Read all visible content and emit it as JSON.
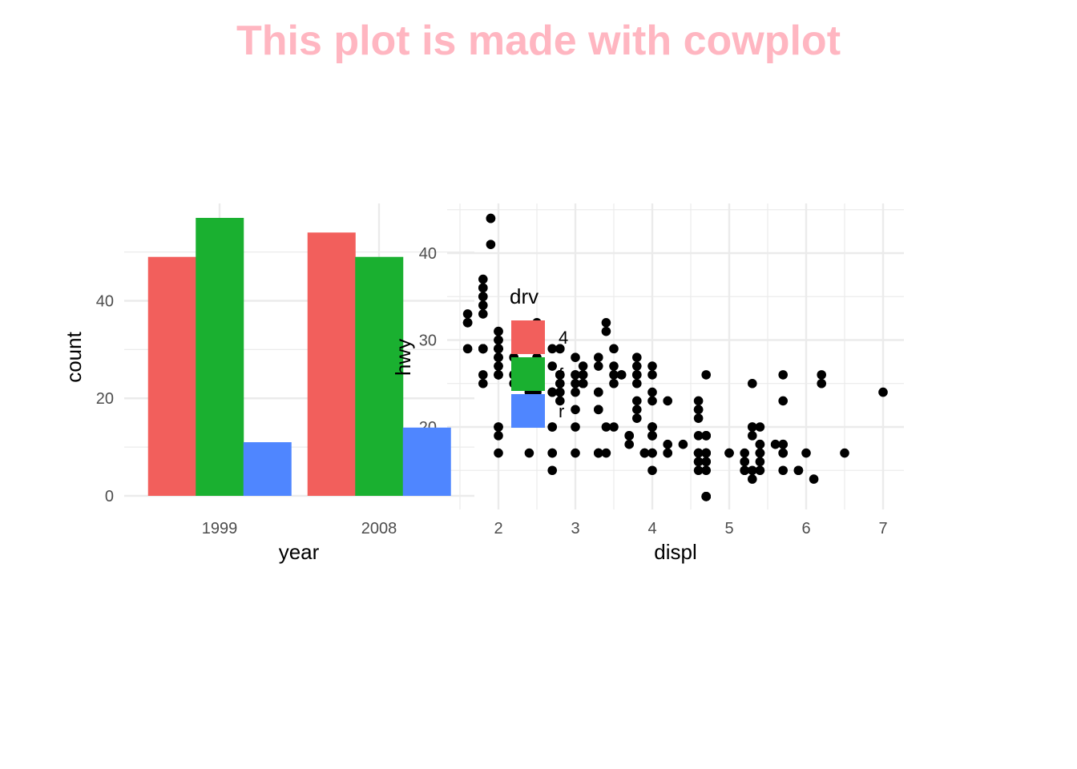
{
  "title": "This plot is made with cowplot",
  "colors": {
    "title": "#FFB6C1",
    "grid": "#ebebeb",
    "fill_4": "#F25F5C",
    "fill_f": "#1AB030",
    "fill_r": "#4F86FF",
    "point": "#000000"
  },
  "chart_data": [
    {
      "type": "bar",
      "xlabel": "year",
      "ylabel": "count",
      "categories": [
        "1999",
        "2008"
      ],
      "yticks": [
        "0",
        "20",
        "40"
      ],
      "ytick_values": [
        0,
        20,
        40
      ],
      "ylim": [
        0,
        57
      ],
      "grid": true,
      "series": [
        {
          "name": "4",
          "color": "#F25F5C",
          "values": [
            49,
            54
          ]
        },
        {
          "name": "f",
          "color": "#1AB030",
          "values": [
            57,
            49
          ]
        },
        {
          "name": "r",
          "color": "#4F86FF",
          "values": [
            11,
            14
          ]
        }
      ]
    },
    {
      "type": "scatter",
      "xlabel": "displ",
      "ylabel": "hwy",
      "xticks": [
        "2",
        "3",
        "4",
        "5",
        "6",
        "7"
      ],
      "xtick_values": [
        2,
        3,
        4,
        5,
        6,
        7
      ],
      "yticks": [
        "20",
        "30",
        "40"
      ],
      "ytick_values": [
        20,
        30,
        40
      ],
      "xlim": [
        1.6,
        7.3
      ],
      "ylim": [
        11,
        45
      ],
      "grid": true,
      "points": [
        [
          1.8,
          29
        ],
        [
          1.8,
          29
        ],
        [
          2.0,
          31
        ],
        [
          2.0,
          30
        ],
        [
          2.8,
          26
        ],
        [
          2.8,
          26
        ],
        [
          3.1,
          27
        ],
        [
          1.8,
          26
        ],
        [
          1.8,
          25
        ],
        [
          2.0,
          28
        ],
        [
          2.0,
          27
        ],
        [
          2.8,
          25
        ],
        [
          2.8,
          25
        ],
        [
          3.1,
          25
        ],
        [
          3.1,
          25
        ],
        [
          2.8,
          24
        ],
        [
          3.1,
          25
        ],
        [
          4.2,
          23
        ],
        [
          5.3,
          20
        ],
        [
          5.3,
          15
        ],
        [
          5.3,
          20
        ],
        [
          5.7,
          17
        ],
        [
          6.0,
          17
        ],
        [
          5.7,
          26
        ],
        [
          5.7,
          23
        ],
        [
          6.2,
          26
        ],
        [
          6.2,
          25
        ],
        [
          7.0,
          24
        ],
        [
          5.3,
          19
        ],
        [
          5.3,
          14
        ],
        [
          5.7,
          15
        ],
        [
          6.5,
          17
        ],
        [
          2.4,
          27
        ],
        [
          2.4,
          30
        ],
        [
          3.1,
          26
        ],
        [
          3.5,
          29
        ],
        [
          3.6,
          26
        ],
        [
          2.4,
          24
        ],
        [
          3.0,
          24
        ],
        [
          3.3,
          22
        ],
        [
          3.3,
          22
        ],
        [
          3.3,
          24
        ],
        [
          3.3,
          24
        ],
        [
          3.3,
          17
        ],
        [
          3.8,
          22
        ],
        [
          3.8,
          21
        ],
        [
          3.8,
          23
        ],
        [
          4.0,
          23
        ],
        [
          3.7,
          19
        ],
        [
          3.7,
          18
        ],
        [
          3.9,
          17
        ],
        [
          3.9,
          17
        ],
        [
          4.7,
          19
        ],
        [
          4.7,
          19
        ],
        [
          4.7,
          12
        ],
        [
          5.2,
          17
        ],
        [
          5.2,
          15
        ],
        [
          3.9,
          17
        ],
        [
          4.7,
          17
        ],
        [
          4.7,
          12
        ],
        [
          4.7,
          17
        ],
        [
          5.2,
          16
        ],
        [
          5.7,
          18
        ],
        [
          5.9,
          15
        ],
        [
          4.7,
          16
        ],
        [
          4.7,
          12
        ],
        [
          4.7,
          17
        ],
        [
          4.7,
          17
        ],
        [
          4.7,
          16
        ],
        [
          4.7,
          12
        ],
        [
          5.2,
          15
        ],
        [
          5.2,
          16
        ],
        [
          5.7,
          17
        ],
        [
          5.9,
          15
        ],
        [
          4.6,
          17
        ],
        [
          5.4,
          17
        ],
        [
          5.4,
          18
        ],
        [
          5.4,
          17
        ],
        [
          4.0,
          19
        ],
        [
          4.0,
          17
        ],
        [
          4.0,
          19
        ],
        [
          4.0,
          19
        ],
        [
          4.6,
          17
        ],
        [
          5.0,
          17
        ],
        [
          4.2,
          17
        ],
        [
          4.2,
          17
        ],
        [
          4.6,
          16
        ],
        [
          4.6,
          16
        ],
        [
          4.6,
          17
        ],
        [
          5.4,
          15
        ],
        [
          5.4,
          17
        ],
        [
          3.8,
          26
        ],
        [
          3.8,
          25
        ],
        [
          4.0,
          26
        ],
        [
          4.0,
          24
        ],
        [
          4.6,
          21
        ],
        [
          4.6,
          22
        ],
        [
          4.6,
          23
        ],
        [
          4.6,
          22
        ],
        [
          5.4,
          20
        ],
        [
          1.6,
          33
        ],
        [
          1.6,
          32
        ],
        [
          1.6,
          32
        ],
        [
          1.6,
          29
        ],
        [
          1.6,
          32
        ],
        [
          1.8,
          34
        ],
        [
          1.8,
          36
        ],
        [
          1.8,
          36
        ],
        [
          2.0,
          29
        ],
        [
          2.4,
          26
        ],
        [
          2.4,
          27
        ],
        [
          2.4,
          30
        ],
        [
          2.4,
          31
        ],
        [
          2.5,
          26
        ],
        [
          2.5,
          26
        ],
        [
          3.3,
          28
        ],
        [
          2.0,
          26
        ],
        [
          2.0,
          29
        ],
        [
          2.0,
          28
        ],
        [
          2.0,
          27
        ],
        [
          2.7,
          24
        ],
        [
          2.7,
          24
        ],
        [
          2.7,
          24
        ],
        [
          3.0,
          22
        ],
        [
          3.7,
          19
        ],
        [
          4.0,
          20
        ],
        [
          4.7,
          17
        ],
        [
          4.7,
          12
        ],
        [
          4.7,
          19
        ],
        [
          5.7,
          18
        ],
        [
          6.1,
          14
        ],
        [
          4.0,
          15
        ],
        [
          4.2,
          18
        ],
        [
          4.4,
          18
        ],
        [
          4.6,
          15
        ],
        [
          5.4,
          17
        ],
        [
          5.4,
          16
        ],
        [
          5.4,
          18
        ],
        [
          4.0,
          17
        ],
        [
          4.0,
          19
        ],
        [
          4.6,
          19
        ],
        [
          5.0,
          17
        ],
        [
          2.4,
          29
        ],
        [
          2.4,
          27
        ],
        [
          2.5,
          31
        ],
        [
          2.5,
          32
        ],
        [
          3.5,
          27
        ],
        [
          3.5,
          26
        ],
        [
          3.0,
          26
        ],
        [
          3.0,
          25
        ],
        [
          3.5,
          25
        ],
        [
          3.3,
          17
        ],
        [
          3.3,
          17
        ],
        [
          4.0,
          20
        ],
        [
          5.6,
          18
        ],
        [
          3.1,
          26
        ],
        [
          3.8,
          26
        ],
        [
          3.8,
          27
        ],
        [
          3.8,
          28
        ],
        [
          5.3,
          25
        ],
        [
          2.5,
          25
        ],
        [
          2.5,
          24
        ],
        [
          2.5,
          27
        ],
        [
          2.5,
          25
        ],
        [
          2.5,
          26
        ],
        [
          2.5,
          23
        ],
        [
          2.2,
          26
        ],
        [
          2.2,
          26
        ],
        [
          2.5,
          26
        ],
        [
          2.5,
          26
        ],
        [
          2.5,
          25
        ],
        [
          2.5,
          27
        ],
        [
          2.5,
          25
        ],
        [
          2.5,
          27
        ],
        [
          2.0,
          20
        ],
        [
          2.0,
          20
        ],
        [
          2.0,
          19
        ],
        [
          2.0,
          17
        ],
        [
          2.7,
          20
        ],
        [
          2.7,
          17
        ],
        [
          2.7,
          29
        ],
        [
          2.7,
          27
        ],
        [
          3.4,
          31
        ],
        [
          3.4,
          32
        ],
        [
          4.0,
          27
        ],
        [
          4.7,
          26
        ],
        [
          2.2,
          26
        ],
        [
          2.2,
          25
        ],
        [
          2.4,
          25
        ],
        [
          2.4,
          17
        ],
        [
          3.0,
          17
        ],
        [
          3.0,
          20
        ],
        [
          3.5,
          20
        ],
        [
          2.2,
          28
        ],
        [
          2.2,
          28
        ],
        [
          2.4,
          30
        ],
        [
          2.4,
          31
        ],
        [
          3.0,
          26
        ],
        [
          3.0,
          28
        ],
        [
          3.3,
          27
        ],
        [
          1.8,
          33
        ],
        [
          1.8,
          35
        ],
        [
          1.8,
          37
        ],
        [
          1.8,
          35
        ],
        [
          1.8,
          29
        ],
        [
          4.7,
          15
        ],
        [
          5.7,
          17
        ],
        [
          2.7,
          15
        ],
        [
          2.7,
          20
        ],
        [
          2.7,
          17
        ],
        [
          3.4,
          17
        ],
        [
          3.4,
          20
        ],
        [
          4.0,
          20
        ],
        [
          4.0,
          20
        ],
        [
          2.0,
          30
        ],
        [
          2.0,
          31
        ],
        [
          2.8,
          29
        ],
        [
          2.8,
          29
        ],
        [
          1.9,
          44
        ],
        [
          2.0,
          29
        ],
        [
          2.0,
          26
        ],
        [
          2.0,
          29
        ],
        [
          2.0,
          29
        ],
        [
          2.5,
          29
        ],
        [
          2.5,
          29
        ],
        [
          2.8,
          23
        ],
        [
          2.8,
          24
        ],
        [
          1.9,
          44
        ],
        [
          1.9,
          41
        ],
        [
          2.0,
          29
        ],
        [
          2.0,
          26
        ],
        [
          2.5,
          28
        ],
        [
          2.5,
          29
        ],
        [
          1.8,
          29
        ],
        [
          1.8,
          29
        ],
        [
          2.0,
          28
        ],
        [
          2.0,
          29
        ],
        [
          2.8,
          26
        ],
        [
          2.8,
          26
        ],
        [
          3.6,
          26
        ]
      ]
    }
  ],
  "legend": {
    "title": "drv",
    "labels": [
      "4",
      "f",
      "r"
    ],
    "colors": [
      "#F25F5C",
      "#1AB030",
      "#4F86FF"
    ]
  }
}
